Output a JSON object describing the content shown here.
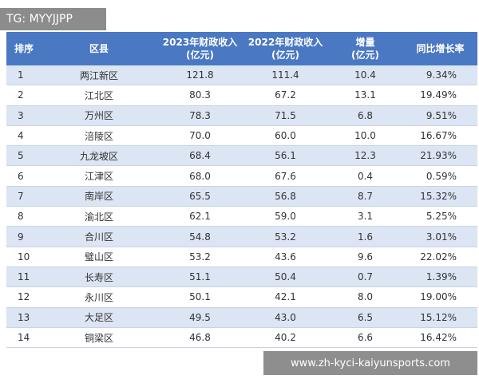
{
  "overlay": {
    "tag": "TG: MYYJJPP",
    "watermark": "www.zh-kyci-kaiyunsports.com"
  },
  "table": {
    "header": [
      [
        "排序"
      ],
      [
        "区县"
      ],
      [
        "2023年财政收入",
        "(亿元)"
      ],
      [
        "2022年财政收入",
        "(亿元)"
      ],
      [
        "增量",
        "(亿元)"
      ],
      [
        "同比增长率"
      ]
    ],
    "rows": [
      [
        "1",
        "两江新区",
        "121.8",
        "111.4",
        "10.4",
        "9.34%"
      ],
      [
        "2",
        "江北区",
        "80.3",
        "67.2",
        "13.1",
        "19.49%"
      ],
      [
        "3",
        "万州区",
        "78.3",
        "71.5",
        "6.8",
        "9.51%"
      ],
      [
        "4",
        "涪陵区",
        "70.0",
        "60.0",
        "10.0",
        "16.67%"
      ],
      [
        "5",
        "九龙坡区",
        "68.4",
        "56.1",
        "12.3",
        "21.93%"
      ],
      [
        "6",
        "江津区",
        "68.0",
        "67.6",
        "0.4",
        "0.59%"
      ],
      [
        "7",
        "南岸区",
        "65.5",
        "56.8",
        "8.7",
        "15.32%"
      ],
      [
        "8",
        "渝北区",
        "62.1",
        "59.0",
        "3.1",
        "5.25%"
      ],
      [
        "9",
        "合川区",
        "54.8",
        "53.2",
        "1.6",
        "3.01%"
      ],
      [
        "10",
        "璧山区",
        "53.2",
        "43.6",
        "9.6",
        "22.02%"
      ],
      [
        "11",
        "长寿区",
        "51.1",
        "50.4",
        "0.7",
        "1.39%"
      ],
      [
        "12",
        "永川区",
        "50.1",
        "42.1",
        "8.0",
        "19.00%"
      ],
      [
        "13",
        "大足区",
        "49.5",
        "43.0",
        "6.5",
        "15.12%"
      ],
      [
        "14",
        "铜梁区",
        "46.8",
        "40.2",
        "6.6",
        "16.42%"
      ]
    ]
  }
}
